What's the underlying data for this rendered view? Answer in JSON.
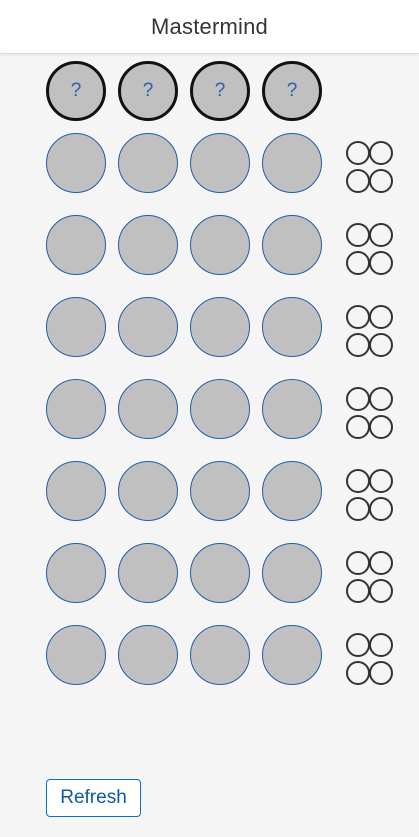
{
  "header": {
    "title": "Mastermind"
  },
  "secret": {
    "pegs": [
      "?",
      "?",
      "?",
      "?"
    ]
  },
  "guesses": {
    "row_count": 7,
    "pegs_per_row": 4,
    "hints_per_row": 4
  },
  "controls": {
    "refresh_label": "Refresh"
  },
  "colors": {
    "peg_fill": "#c0c0c0",
    "peg_border": "#1f5ea8",
    "secret_border": "#111111",
    "hint_border": "#333333",
    "accent": "#0a6ed1"
  }
}
